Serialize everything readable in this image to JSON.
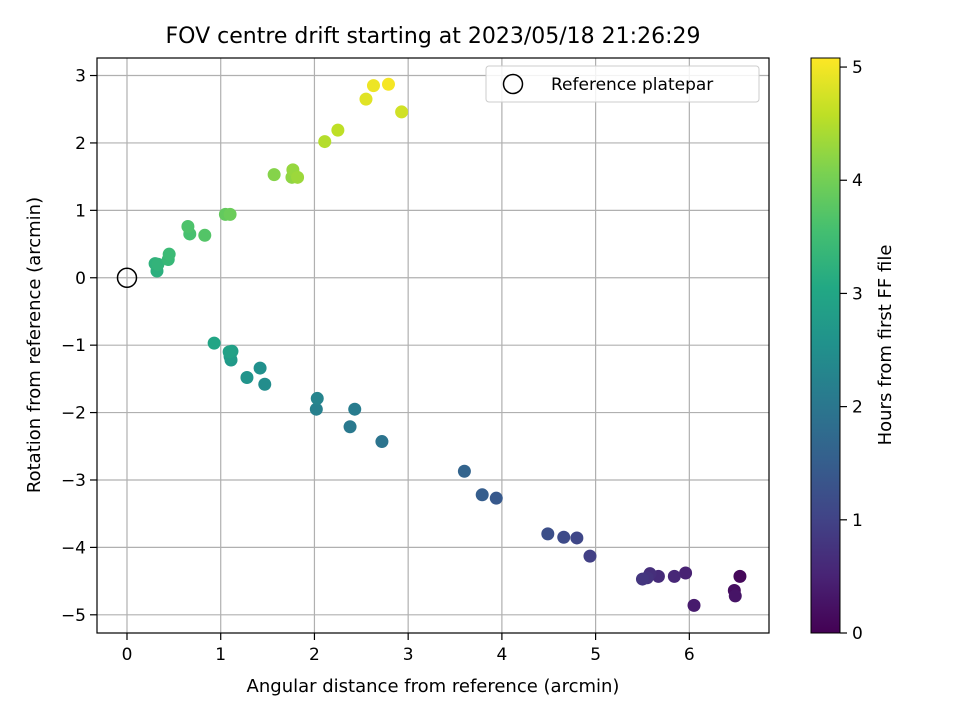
{
  "chart_data": {
    "type": "scatter",
    "title": "FOV centre drift starting at 2023/05/18 21:26:29",
    "xlabel": "Angular distance from reference (arcmin)",
    "ylabel": "Rotation from reference (arcmin)",
    "xlim": [
      -0.32,
      6.85
    ],
    "ylim": [
      -5.27,
      3.26
    ],
    "xticks": [
      0,
      1,
      2,
      3,
      4,
      5,
      6
    ],
    "yticks": [
      -5,
      -4,
      -3,
      -2,
      -1,
      0,
      1,
      2,
      3
    ],
    "grid": true,
    "legend": {
      "placement": "top-right",
      "entries": [
        "Reference platepar"
      ]
    },
    "reference_point": {
      "x": 0,
      "y": 0
    },
    "colorbar": {
      "label": "Hours from first FF file",
      "range": [
        0,
        5.08
      ],
      "ticks": [
        0,
        1,
        2,
        3,
        4,
        5
      ],
      "colormap": "viridis"
    },
    "points": [
      {
        "x": 6.54,
        "y": -4.43,
        "h": 0.1
      },
      {
        "x": 6.48,
        "y": -4.64,
        "h": 0.2
      },
      {
        "x": 6.49,
        "y": -4.72,
        "h": 0.28
      },
      {
        "x": 6.05,
        "y": -4.86,
        "h": 0.38
      },
      {
        "x": 5.96,
        "y": -4.38,
        "h": 0.48
      },
      {
        "x": 5.84,
        "y": -4.43,
        "h": 0.56
      },
      {
        "x": 5.67,
        "y": -4.43,
        "h": 0.62
      },
      {
        "x": 5.58,
        "y": -4.39,
        "h": 0.68
      },
      {
        "x": 5.55,
        "y": -4.45,
        "h": 0.74
      },
      {
        "x": 5.5,
        "y": -4.47,
        "h": 0.8
      },
      {
        "x": 4.94,
        "y": -4.13,
        "h": 0.95
      },
      {
        "x": 4.8,
        "y": -3.86,
        "h": 1.08
      },
      {
        "x": 4.66,
        "y": -3.85,
        "h": 1.15
      },
      {
        "x": 4.49,
        "y": -3.8,
        "h": 1.22
      },
      {
        "x": 3.94,
        "y": -3.27,
        "h": 1.42
      },
      {
        "x": 3.79,
        "y": -3.22,
        "h": 1.5
      },
      {
        "x": 3.6,
        "y": -2.87,
        "h": 1.62
      },
      {
        "x": 2.72,
        "y": -2.43,
        "h": 1.95
      },
      {
        "x": 2.38,
        "y": -2.21,
        "h": 2.05
      },
      {
        "x": 2.43,
        "y": -1.95,
        "h": 2.12
      },
      {
        "x": 2.02,
        "y": -1.95,
        "h": 2.2
      },
      {
        "x": 2.03,
        "y": -1.79,
        "h": 2.28
      },
      {
        "x": 1.47,
        "y": -1.58,
        "h": 2.45
      },
      {
        "x": 1.42,
        "y": -1.34,
        "h": 2.52
      },
      {
        "x": 1.28,
        "y": -1.48,
        "h": 2.6
      },
      {
        "x": 1.11,
        "y": -1.22,
        "h": 2.72
      },
      {
        "x": 1.1,
        "y": -1.17,
        "h": 2.78
      },
      {
        "x": 1.12,
        "y": -1.09,
        "h": 2.84
      },
      {
        "x": 1.09,
        "y": -1.1,
        "h": 2.9
      },
      {
        "x": 0.93,
        "y": -0.97,
        "h": 2.98
      },
      {
        "x": 0.32,
        "y": 0.1,
        "h": 3.2
      },
      {
        "x": 0.3,
        "y": 0.21,
        "h": 3.25
      },
      {
        "x": 0.33,
        "y": 0.2,
        "h": 3.3
      },
      {
        "x": 0.44,
        "y": 0.27,
        "h": 3.38
      },
      {
        "x": 0.45,
        "y": 0.35,
        "h": 3.44
      },
      {
        "x": 0.67,
        "y": 0.65,
        "h": 3.58
      },
      {
        "x": 0.65,
        "y": 0.76,
        "h": 3.64
      },
      {
        "x": 0.83,
        "y": 0.63,
        "h": 3.7
      },
      {
        "x": 1.05,
        "y": 0.94,
        "h": 3.85
      },
      {
        "x": 1.1,
        "y": 0.94,
        "h": 3.92
      },
      {
        "x": 1.57,
        "y": 1.53,
        "h": 4.15
      },
      {
        "x": 1.76,
        "y": 1.49,
        "h": 4.22
      },
      {
        "x": 1.77,
        "y": 1.6,
        "h": 4.28
      },
      {
        "x": 1.82,
        "y": 1.49,
        "h": 4.32
      },
      {
        "x": 2.11,
        "y": 2.02,
        "h": 4.5
      },
      {
        "x": 2.25,
        "y": 2.19,
        "h": 4.58
      },
      {
        "x": 2.93,
        "y": 2.46,
        "h": 4.72
      },
      {
        "x": 2.55,
        "y": 2.65,
        "h": 4.85
      },
      {
        "x": 2.63,
        "y": 2.85,
        "h": 4.95
      },
      {
        "x": 2.79,
        "y": 2.87,
        "h": 5.02
      }
    ]
  }
}
